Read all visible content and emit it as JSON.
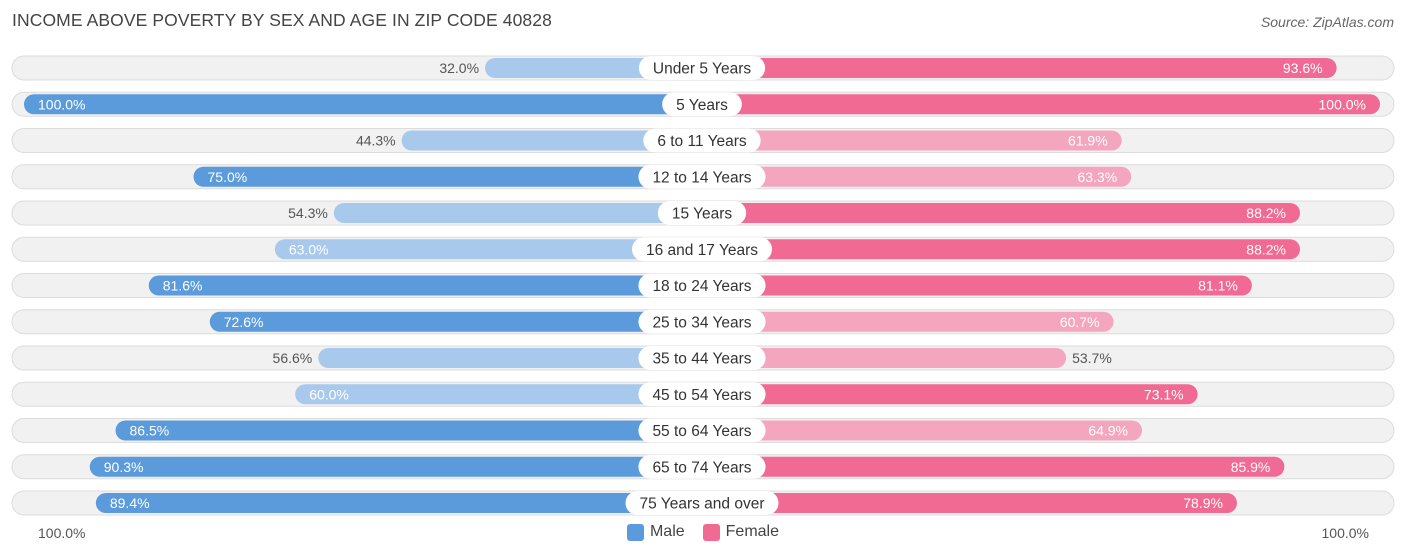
{
  "title": "INCOME ABOVE POVERTY BY SEX AND AGE IN ZIP CODE 40828",
  "source": "Source: ZipAtlas.com",
  "axis": {
    "left_label": "100.0%",
    "right_label": "100.0%"
  },
  "legend": {
    "male_label": "Male",
    "female_label": "Female"
  },
  "colors": {
    "male_strong": "#5b9bdc",
    "male_light": "#a9c9ec",
    "female_strong": "#f06a93",
    "female_light": "#f5a6bf",
    "row_bg": "#f1f1f1"
  },
  "chart_data": {
    "type": "bar",
    "orientation": "horizontal-diverging",
    "title": "INCOME ABOVE POVERTY BY SEX AND AGE IN ZIP CODE 40828",
    "categories": [
      "Under 5 Years",
      "5 Years",
      "6 to 11 Years",
      "12 to 14 Years",
      "15 Years",
      "16 and 17 Years",
      "18 to 24 Years",
      "25 to 34 Years",
      "35 to 44 Years",
      "45 to 54 Years",
      "55 to 64 Years",
      "65 to 74 Years",
      "75 Years and over"
    ],
    "series": [
      {
        "name": "Male",
        "values": [
          32.0,
          100.0,
          44.3,
          75.0,
          54.3,
          63.0,
          81.6,
          72.6,
          56.6,
          60.0,
          86.5,
          90.3,
          89.4
        ]
      },
      {
        "name": "Female",
        "values": [
          93.6,
          100.0,
          61.9,
          63.3,
          88.2,
          88.2,
          81.1,
          60.7,
          53.7,
          73.1,
          64.9,
          85.9,
          78.9
        ]
      }
    ],
    "xlim": [
      0,
      100
    ],
    "legend_position": "bottom-center",
    "grid": false
  }
}
